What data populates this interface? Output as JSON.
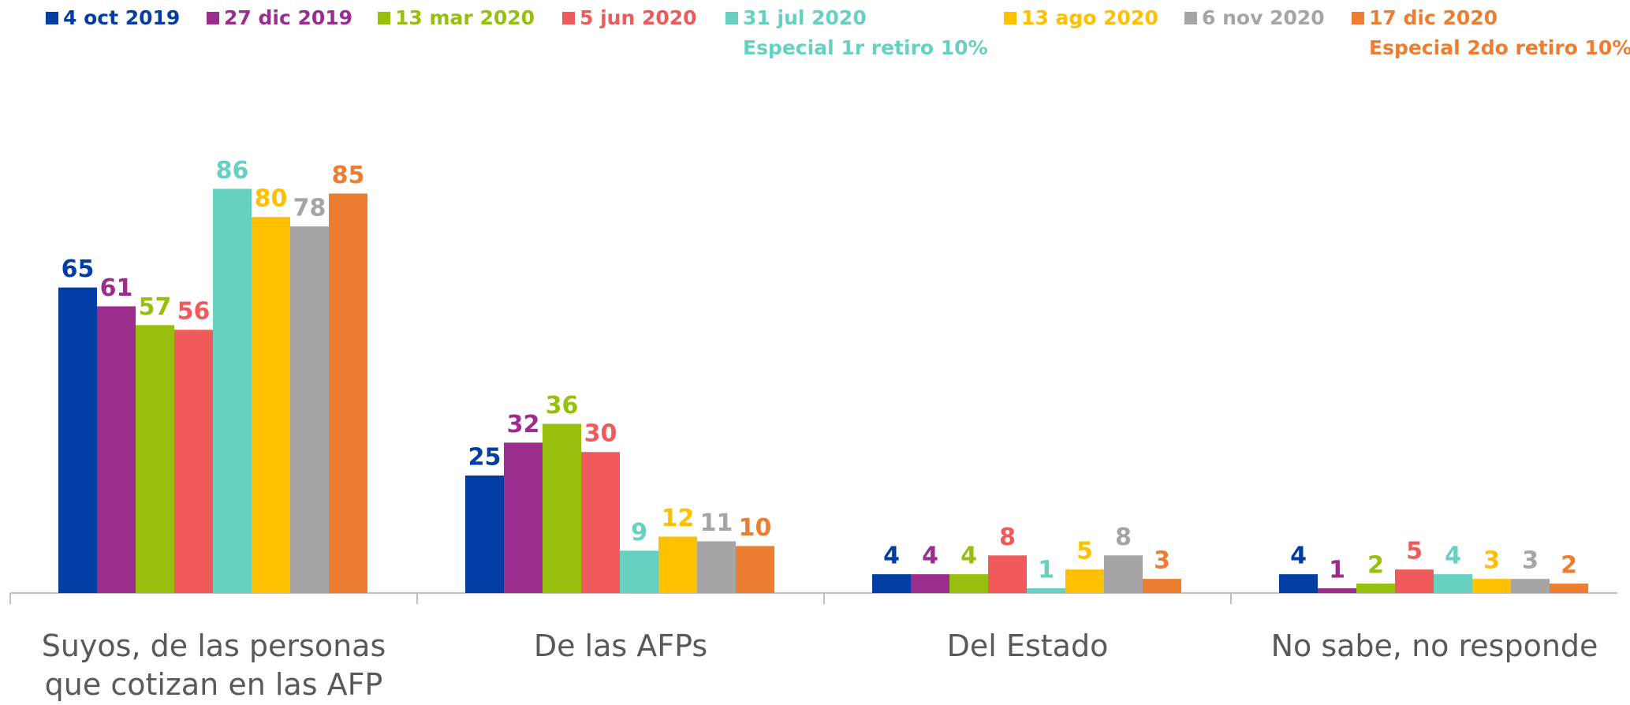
{
  "chart_data": {
    "type": "bar",
    "categories": [
      "Suyos, de las personas que cotizan en las AFP",
      "De las AFPs",
      "Del Estado",
      "No sabe, no responde"
    ],
    "series": [
      {
        "name": "4 oct 2019",
        "color": "#003da5",
        "values": [
          65,
          25,
          4,
          4
        ]
      },
      {
        "name": "27 dic 2019",
        "color": "#9b2d8f",
        "values": [
          61,
          32,
          4,
          1
        ]
      },
      {
        "name": "13 mar 2020",
        "color": "#97bf0d",
        "values": [
          57,
          36,
          4,
          2
        ]
      },
      {
        "name": "5 jun 2020",
        "color": "#f05a5a",
        "values": [
          56,
          30,
          8,
          5
        ]
      },
      {
        "name": "31 jul 2020",
        "note": "Especial 1r retiro 10%",
        "color": "#66d1c1",
        "values": [
          86,
          9,
          1,
          4
        ]
      },
      {
        "name": "13 ago 2020",
        "color": "#ffc000",
        "values": [
          80,
          12,
          5,
          3
        ]
      },
      {
        "name": "6 nov 2020",
        "color": "#a5a5a5",
        "values": [
          78,
          11,
          8,
          3
        ]
      },
      {
        "name": "17 dic 2020",
        "note": "Especial 2do retiro 10%",
        "color": "#ed7d31",
        "values": [
          85,
          10,
          3,
          2
        ]
      }
    ],
    "ylim": [
      0,
      100
    ],
    "legend": "top"
  }
}
